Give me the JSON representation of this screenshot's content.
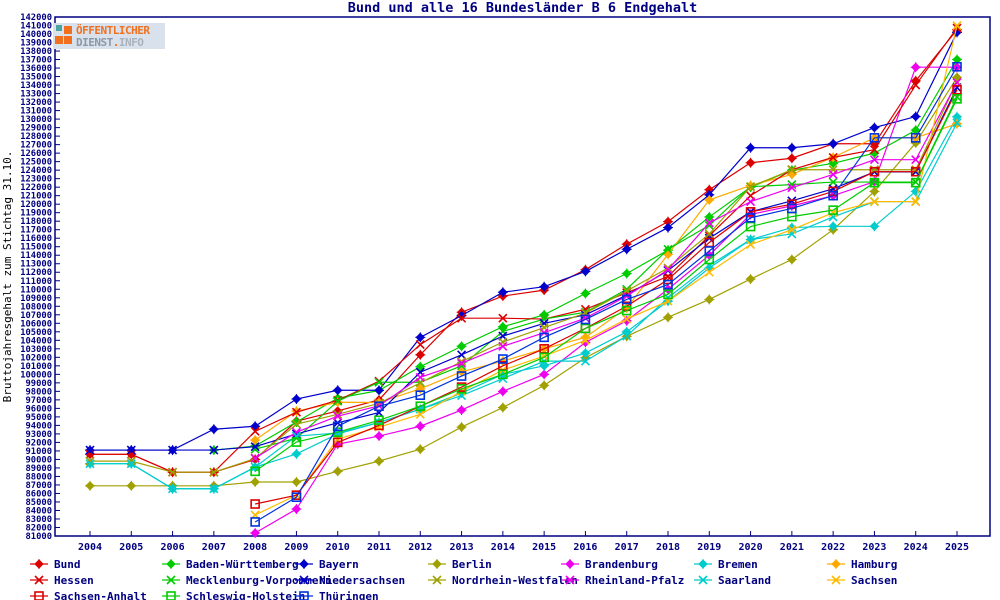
{
  "title": "Bund und alle 16 Bundesländer B 6 Endgehalt",
  "logo": {
    "line1": "ÖFFENTLICHER",
    "line2_part1": "DIENST",
    "line2_dot": ".",
    "line2_part2": "INFO",
    "bg_color": "#d9e2ec",
    "orange": "#f07020",
    "teal": "#4aa5a0",
    "gray1": "#8a97a5",
    "gray2": "#aab3bc"
  },
  "colors": {
    "axis": "#000080",
    "text": "#000080",
    "background": "#ffffff"
  },
  "y_axis": {
    "label": "Bruttojahresgehalt zum Stichtag 31.10.",
    "min": 81000,
    "max": 142000,
    "step": 1000
  },
  "x_axis": {
    "years": [
      2004,
      2005,
      2006,
      2007,
      2008,
      2009,
      2010,
      2011,
      2012,
      2013,
      2014,
      2015,
      2016,
      2017,
      2018,
      2019,
      2020,
      2021,
      2022,
      2023,
      2024,
      2025
    ]
  },
  "chart_data": {
    "type": "line",
    "title": "Bund und alle 16 Bundesländer B 6 Endgehalt",
    "xlabel": "",
    "ylabel": "Bruttojahresgehalt zum Stichtag 31.10.",
    "ylim": [
      81000,
      142000
    ],
    "ytick_step": 1000,
    "grid": false,
    "legend_position": "bottom",
    "x": [
      2004,
      2005,
      2006,
      2007,
      2008,
      2009,
      2010,
      2011,
      2012,
      2013,
      2014,
      2015,
      2016,
      2017,
      2018,
      2019,
      2020,
      2021,
      2022,
      2023,
      2024,
      2025
    ],
    "series": [
      {
        "name": "Bund",
        "color": "#dd0000",
        "marker": "diamond",
        "values": [
          90600,
          90600,
          88500,
          88500,
          90000,
          94500,
          95700,
          97000,
          102300,
          107300,
          109200,
          109900,
          112300,
          115300,
          117950,
          121700,
          124870,
          125400,
          127100,
          127100,
          134500,
          140500
        ]
      },
      {
        "name": "Baden-Württemberg",
        "color": "#00cc00",
        "marker": "diamond",
        "values": [
          null,
          null,
          null,
          91100,
          91570,
          94400,
          97200,
          98100,
          100900,
          103300,
          105600,
          107000,
          109500,
          111850,
          114600,
          118500,
          122000,
          124000,
          124800,
          126000,
          128700,
          137000
        ]
      },
      {
        "name": "Bayern",
        "color": "#0000cc",
        "marker": "diamond",
        "values": [
          91100,
          91100,
          91100,
          93550,
          93900,
          97100,
          98130,
          98130,
          104350,
          106900,
          109650,
          110300,
          112100,
          114700,
          117250,
          121100,
          126630,
          126630,
          127100,
          129000,
          130300,
          140200
        ]
      },
      {
        "name": "Berlin",
        "color": "#a0a000",
        "marker": "diamond",
        "values": [
          86900,
          86900,
          86900,
          86900,
          87350,
          87350,
          88600,
          89800,
          91200,
          93800,
          96100,
          98700,
          101950,
          104470,
          106700,
          108800,
          111200,
          113500,
          117000,
          121500,
          127200,
          134900
        ]
      },
      {
        "name": "Brandenburg",
        "color": "#ee00ee",
        "marker": "diamond",
        "values": [
          null,
          null,
          null,
          null,
          81350,
          84170,
          91800,
          92750,
          93900,
          95800,
          98000,
          100000,
          103760,
          106300,
          110000,
          114000,
          118800,
          119800,
          121000,
          122650,
          136100,
          136100
        ]
      },
      {
        "name": "Bremen",
        "color": "#00cccc",
        "marker": "diamond",
        "values": [
          89500,
          89500,
          86550,
          86550,
          89100,
          90650,
          93000,
          94350,
          95900,
          97800,
          100000,
          101000,
          102500,
          105000,
          108600,
          112500,
          115840,
          117250,
          117400,
          117400,
          121500,
          130270
        ]
      },
      {
        "name": "Hamburg",
        "color": "#ffaa00",
        "marker": "diamond",
        "values": [
          null,
          null,
          null,
          null,
          92270,
          95670,
          96720,
          96700,
          98300,
          100300,
          101550,
          103000,
          104350,
          107800,
          114100,
          120500,
          122200,
          123500,
          125500,
          127800,
          127800,
          129450
        ]
      },
      {
        "name": "Hessen",
        "color": "#dd0000",
        "marker": "x",
        "values": [
          90600,
          90600,
          88500,
          88500,
          93300,
          95550,
          96950,
          99190,
          103500,
          106600,
          106600,
          106500,
          107650,
          109600,
          111500,
          116300,
          121000,
          124050,
          125500,
          126400,
          134000,
          140700
        ]
      },
      {
        "name": "Mecklenburg-Vorpommern",
        "color": "#00cc00",
        "marker": "x",
        "values": [
          null,
          null,
          null,
          null,
          91200,
          92500,
          96840,
          99070,
          99070,
          101000,
          105050,
          106500,
          107300,
          110000,
          114700,
          117500,
          122060,
          122300,
          122600,
          122600,
          122600,
          132600
        ]
      },
      {
        "name": "Niedersachsen",
        "color": "#0000cc",
        "marker": "x",
        "values": [
          91100,
          91100,
          91100,
          91100,
          91500,
          93000,
          94300,
          95500,
          100250,
          102300,
          104500,
          106000,
          107000,
          109300,
          112200,
          116000,
          119100,
          120400,
          121800,
          123800,
          123800,
          133700
        ]
      },
      {
        "name": "Nordrhein-Westfalen",
        "color": "#a0a000",
        "marker": "x",
        "values": [
          89800,
          89800,
          88500,
          88500,
          90100,
          94150,
          95300,
          96600,
          99000,
          101500,
          103800,
          105500,
          107200,
          109800,
          112500,
          116500,
          122060,
          124050,
          124050,
          124050,
          124050,
          134400
        ]
      },
      {
        "name": "Rheinland-Pfalz",
        "color": "#ee00ee",
        "marker": "x",
        "values": [
          null,
          null,
          null,
          null,
          90150,
          93200,
          95080,
          96300,
          99650,
          101300,
          103300,
          104900,
          106600,
          109200,
          112300,
          117800,
          120300,
          121940,
          123500,
          125230,
          125230,
          134300
        ]
      },
      {
        "name": "Saarland",
        "color": "#00cccc",
        "marker": "x",
        "values": [
          89500,
          89500,
          86550,
          86550,
          89100,
          92750,
          93100,
          94350,
          95900,
          97500,
          99500,
          101550,
          101550,
          104500,
          109000,
          112800,
          115840,
          116500,
          118500,
          120300,
          120300,
          129560
        ]
      },
      {
        "name": "Sachsen",
        "color": "#ffbb00",
        "marker": "x",
        "values": [
          null,
          null,
          null,
          null,
          83470,
          85800,
          92400,
          93800,
          95300,
          98000,
          100500,
          102150,
          104000,
          106500,
          108600,
          112000,
          115250,
          117000,
          119000,
          120300,
          120300,
          141000
        ]
      },
      {
        "name": "Sachsen-Anhalt",
        "color": "#dd0000",
        "marker": "square",
        "values": [
          null,
          null,
          null,
          null,
          84760,
          85800,
          92000,
          94000,
          96250,
          98500,
          101000,
          103000,
          105400,
          108000,
          111150,
          115500,
          119100,
          120000,
          121500,
          123820,
          123820,
          133440
        ]
      },
      {
        "name": "Schleswig-Holstein",
        "color": "#00cc00",
        "marker": "square",
        "values": [
          null,
          null,
          null,
          null,
          88600,
          92040,
          93200,
          94600,
          96250,
          98300,
          100000,
          102000,
          105400,
          107500,
          109400,
          113500,
          117370,
          118540,
          119300,
          122530,
          122530,
          132380
        ]
      },
      {
        "name": "Thüringen",
        "color": "#0033dd",
        "marker": "square",
        "values": [
          null,
          null,
          null,
          null,
          82650,
          85560,
          93900,
          96250,
          97550,
          99800,
          101800,
          104350,
          106450,
          108800,
          110550,
          114500,
          118400,
          119500,
          121000,
          127800,
          127800,
          136150
        ]
      }
    ]
  },
  "legend": {
    "columns": 7,
    "marker_note": "rows: diamond, x, open-square"
  }
}
